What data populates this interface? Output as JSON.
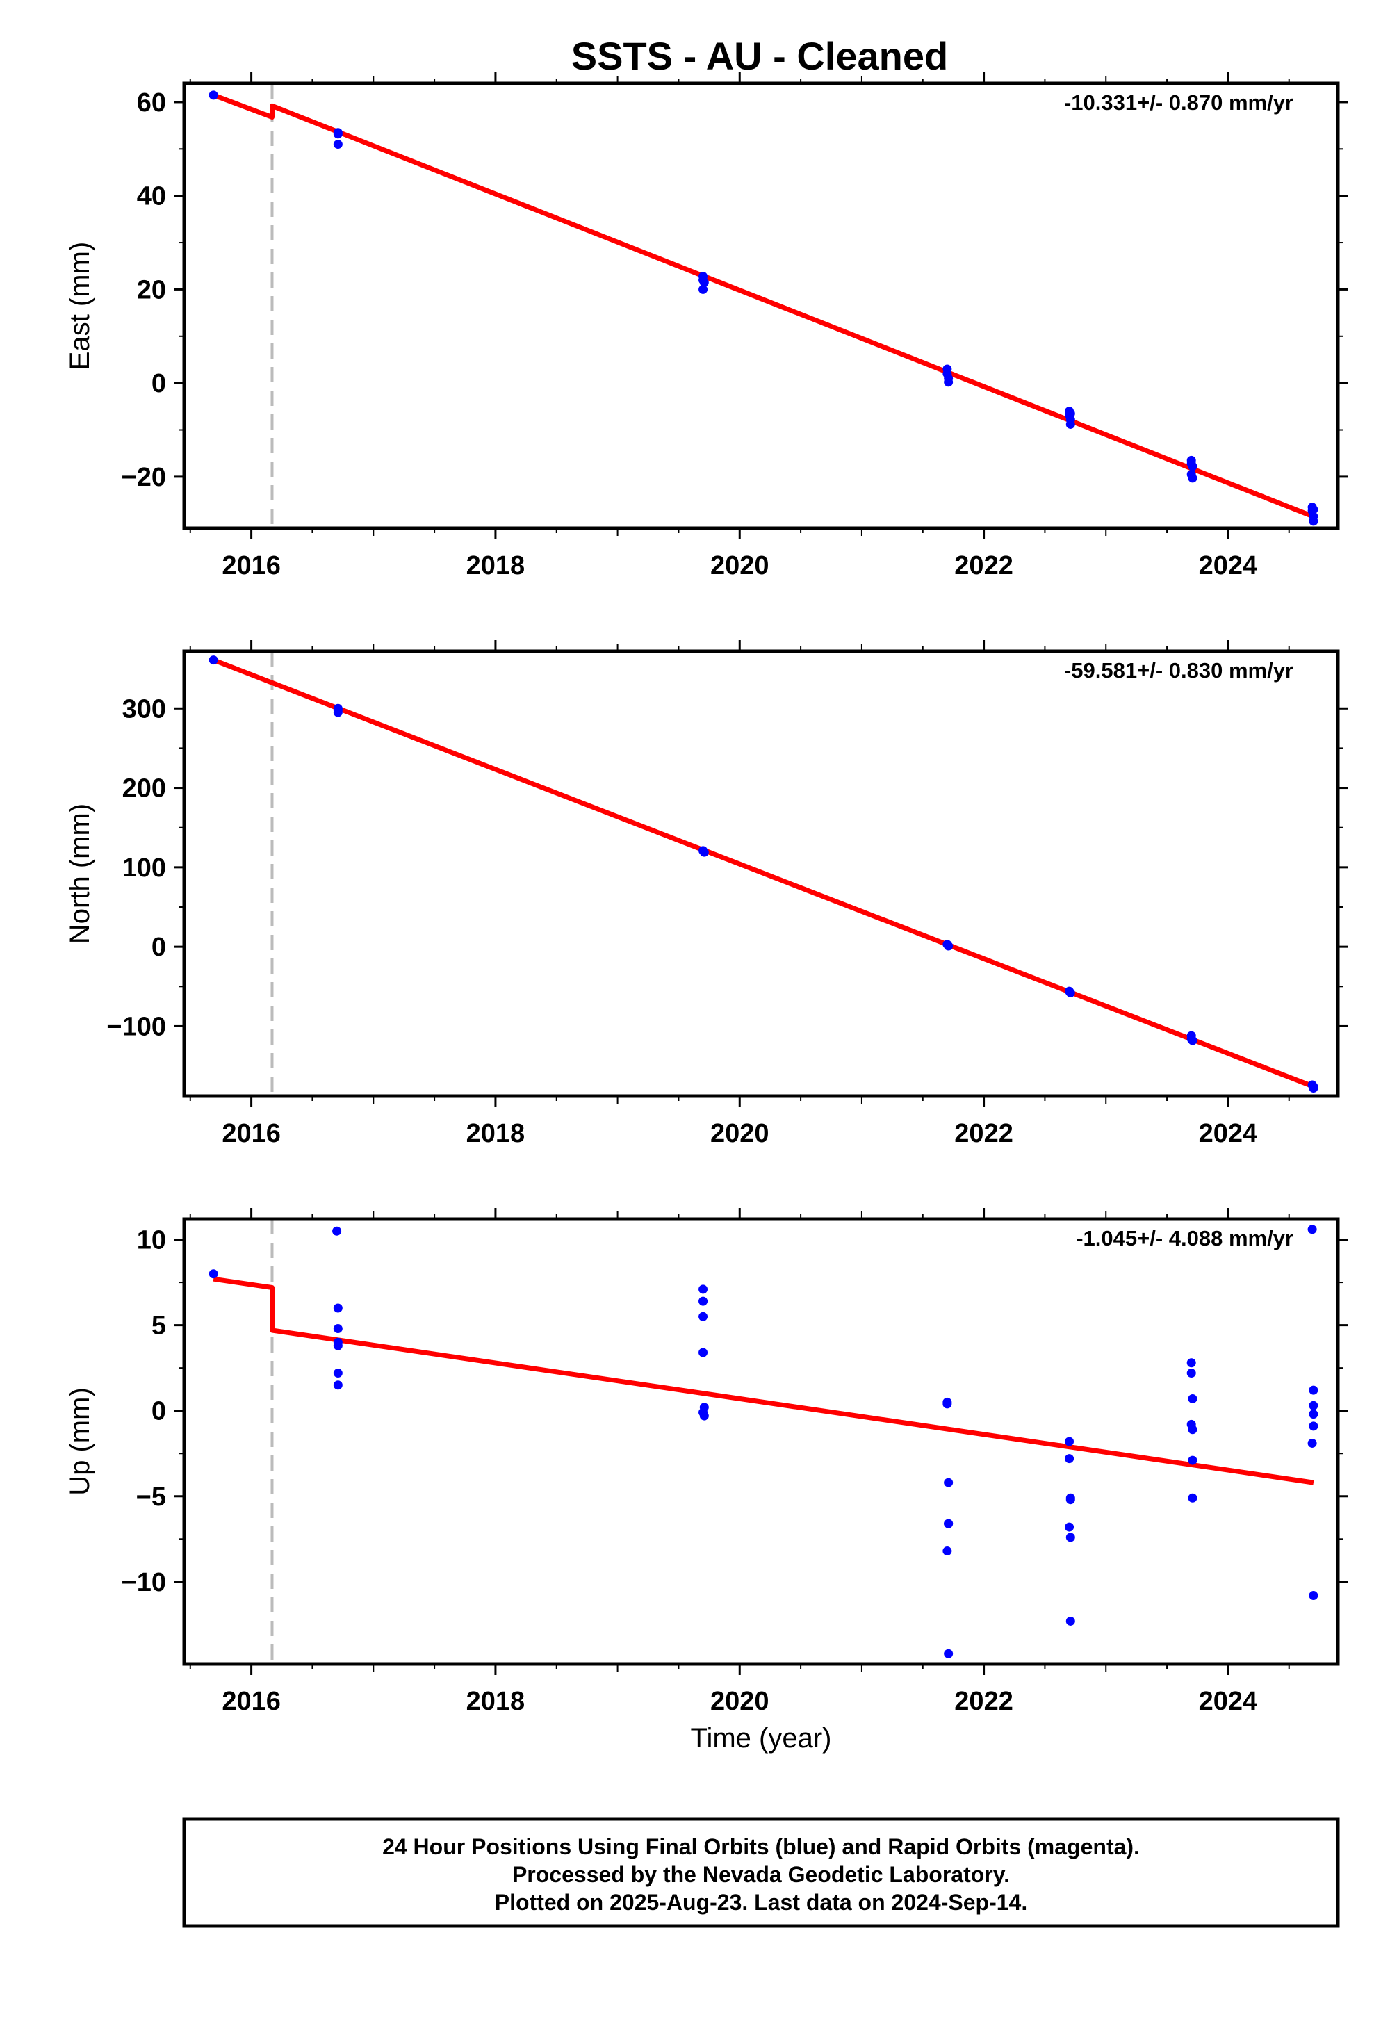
{
  "title": "SSTS  - AU - Cleaned",
  "chart_data": [
    {
      "type": "scatter",
      "ylabel": "East (mm)",
      "xlabel": "",
      "xlim": [
        2015.45,
        2024.9
      ],
      "ylim": [
        -31,
        64
      ],
      "yticks": [
        60,
        40,
        20,
        0,
        -20
      ],
      "ytick_labels": [
        "60",
        "40",
        "20",
        "0",
        "−20"
      ],
      "xticks": [
        2016,
        2018,
        2020,
        2022,
        2024
      ],
      "xtick_labels": [
        "2016",
        "2018",
        "2020",
        "2022",
        "2024"
      ],
      "rate_text": "-10.331+/- 0.870 mm/yr",
      "equipment_change": 2016.17,
      "series": [
        {
          "role": "points",
          "color": "#0000ff",
          "x": [
            2015.69,
            2016.71,
            2016.71,
            2016.71,
            2019.7,
            2019.7,
            2019.7,
            2019.71,
            2021.7,
            2021.7,
            2021.71,
            2021.71,
            2022.7,
            2022.7,
            2022.71,
            2022.71,
            2022.71,
            2023.7,
            2023.7,
            2023.7,
            2023.71,
            2023.71,
            2024.69,
            2024.69,
            2024.7,
            2024.7,
            2024.7
          ],
          "y": [
            61.5,
            53.5,
            53.2,
            51.0,
            22.8,
            22.0,
            20.0,
            21.5,
            3.0,
            2.0,
            1.0,
            0.2,
            -6.0,
            -6.8,
            -7.8,
            -8.8,
            -6.5,
            -16.5,
            -17.2,
            -19.5,
            -20.3,
            -17.8,
            -26.5,
            -27.3,
            -28.5,
            -29.5,
            -27.0
          ]
        },
        {
          "role": "model",
          "color": "#ff0000",
          "x": [
            2015.69,
            2016.17,
            2016.17,
            2024.7
          ],
          "y": [
            61.5,
            56.8,
            59.2,
            -28.5
          ]
        }
      ]
    },
    {
      "type": "scatter",
      "ylabel": "North (mm)",
      "xlabel": "",
      "xlim": [
        2015.45,
        2024.9
      ],
      "ylim": [
        -188,
        372
      ],
      "yticks": [
        300,
        200,
        100,
        0,
        -100
      ],
      "ytick_labels": [
        "300",
        "200",
        "100",
        "0",
        "−100"
      ],
      "xticks": [
        2016,
        2018,
        2020,
        2022,
        2024
      ],
      "xtick_labels": [
        "2016",
        "2018",
        "2020",
        "2022",
        "2024"
      ],
      "rate_text": "-59.581+/- 0.830 mm/yr",
      "equipment_change": 2016.17,
      "series": [
        {
          "role": "points",
          "color": "#0000ff",
          "x": [
            2015.69,
            2016.71,
            2016.71,
            2016.71,
            2019.7,
            2019.71,
            2021.7,
            2021.71,
            2022.7,
            2022.71,
            2023.7,
            2023.7,
            2023.71,
            2024.69,
            2024.7,
            2024.7
          ],
          "y": [
            361,
            300,
            298,
            295,
            121,
            119,
            3,
            1,
            -56,
            -58,
            -112,
            -116,
            -118,
            -174,
            -176,
            -178
          ]
        },
        {
          "role": "model",
          "color": "#ff0000",
          "x": [
            2015.69,
            2024.7
          ],
          "y": [
            361,
            -176
          ]
        }
      ]
    },
    {
      "type": "scatter",
      "ylabel": "Up (mm)",
      "xlabel": "Time (year)",
      "xlim": [
        2015.45,
        2024.9
      ],
      "ylim": [
        -14.8,
        11.2
      ],
      "yticks": [
        10,
        5,
        0,
        -5,
        -10
      ],
      "ytick_labels": [
        "10",
        "5",
        "0",
        "−5",
        "−10"
      ],
      "xticks": [
        2016,
        2018,
        2020,
        2022,
        2024
      ],
      "xtick_labels": [
        "2016",
        "2018",
        "2020",
        "2022",
        "2024"
      ],
      "rate_text": "-1.045+/- 4.088 mm/yr",
      "equipment_change": 2016.17,
      "series": [
        {
          "role": "points",
          "color": "#0000ff",
          "x": [
            2015.69,
            2016.7,
            2016.71,
            2016.71,
            2016.71,
            2016.71,
            2016.71,
            2016.71,
            2019.7,
            2019.7,
            2019.7,
            2019.7,
            2019.71,
            2019.7,
            2019.71,
            2021.7,
            2021.7,
            2021.71,
            2021.71,
            2021.71,
            2021.7,
            2021.71,
            2022.7,
            2022.7,
            2022.71,
            2022.71,
            2022.7,
            2022.71,
            2022.71,
            2023.7,
            2023.7,
            2023.71,
            2023.7,
            2023.71,
            2023.71,
            2023.71,
            2024.69,
            2024.7,
            2024.7,
            2024.7,
            2024.69,
            2024.7,
            2024.7
          ],
          "y": [
            8.0,
            10.5,
            6.0,
            4.8,
            4.0,
            3.8,
            2.2,
            1.5,
            7.1,
            6.4,
            5.5,
            3.4,
            0.2,
            -0.1,
            -0.3,
            0.5,
            0.4,
            -4.2,
            -6.6,
            -6.6,
            -8.2,
            -14.2,
            -1.8,
            -2.8,
            -5.1,
            -5.2,
            -6.8,
            -7.4,
            -12.3,
            2.8,
            2.2,
            0.7,
            -0.8,
            -1.1,
            -2.9,
            -5.1,
            10.6,
            1.2,
            0.3,
            -0.2,
            -1.9,
            -0.9,
            -10.8
          ]
        },
        {
          "role": "model",
          "color": "#ff0000",
          "x": [
            2015.69,
            2016.17,
            2016.17,
            2024.7
          ],
          "y": [
            7.7,
            7.2,
            4.7,
            -4.2
          ]
        }
      ]
    }
  ],
  "footer": {
    "line1": "24 Hour Positions Using Final Orbits (blue) and Rapid Orbits (magenta).",
    "line2": "Processed by the Nevada Geodetic Laboratory.",
    "line3": "Plotted on 2025-Aug-23. Last data on 2024-Sep-14."
  }
}
